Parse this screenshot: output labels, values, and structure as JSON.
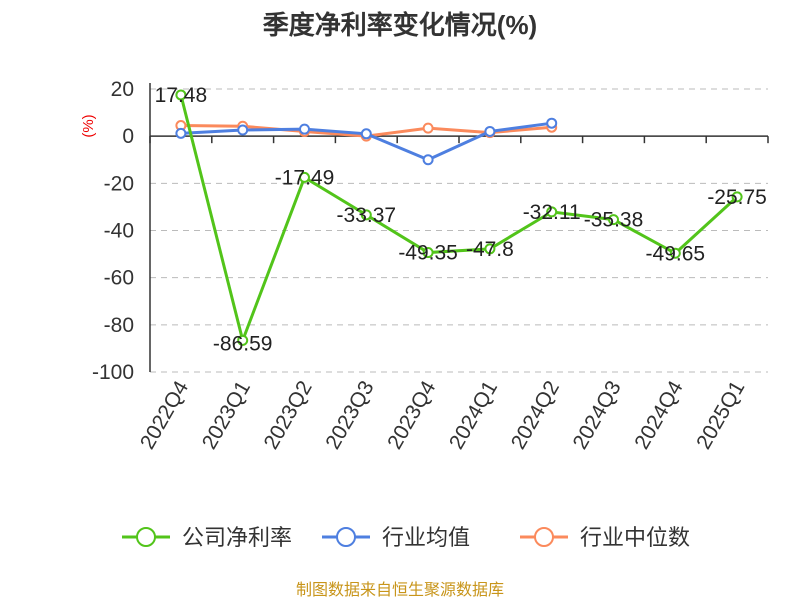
{
  "chart_data": {
    "type": "line",
    "title": "季度净利率变化情况(%)",
    "ylabel": "(%)",
    "ylim": [
      -100,
      20
    ],
    "yticks": [
      20,
      0,
      -20,
      -40,
      -60,
      -80,
      -100
    ],
    "grid": true,
    "legend_position": "bottom",
    "categories": [
      "2022Q4",
      "2023Q1",
      "2023Q2",
      "2023Q3",
      "2023Q4",
      "2024Q1",
      "2024Q2",
      "2024Q3",
      "2024Q4",
      "2025Q1"
    ],
    "series": [
      {
        "name": "公司净利率",
        "color": "#52c41a",
        "values": [
          17.48,
          -86.59,
          -17.49,
          -33.37,
          -49.35,
          -47.8,
          -32.11,
          -35.38,
          -49.65,
          -25.75
        ],
        "labels": true
      },
      {
        "name": "行业均值",
        "color": "#4e7fe0",
        "values": [
          1.2,
          2.6,
          3.0,
          1.0,
          -10.0,
          2.0,
          5.5,
          null,
          null,
          null
        ],
        "labels": false
      },
      {
        "name": "行业中位数",
        "color": "#fb8a5c",
        "values": [
          4.5,
          4.2,
          2.0,
          0.0,
          3.4,
          1.5,
          3.8,
          null,
          null,
          null
        ],
        "labels": false
      }
    ],
    "source": "制图数据来自恒生聚源数据库"
  }
}
